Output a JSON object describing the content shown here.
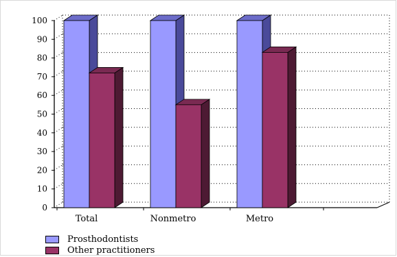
{
  "chart_data": {
    "type": "bar",
    "categories": [
      "Total",
      "Nonmetro",
      "Metro"
    ],
    "series": [
      {
        "name": "Prosthodontists",
        "values": [
          100,
          100,
          100
        ],
        "color": "#9999ff",
        "side_color": "#4a4a9a",
        "top_color": "#6c6cc9"
      },
      {
        "name": "Other practitioners",
        "values": [
          72,
          55,
          83
        ],
        "color": "#993366",
        "side_color": "#4d1a33",
        "top_color": "#7a2a52"
      }
    ],
    "ylim": [
      0,
      100
    ],
    "yticks": [
      "0",
      "10",
      "20",
      "30",
      "40",
      "50",
      "60",
      "70",
      "80",
      "90",
      "100"
    ],
    "grid": true,
    "legend_position": "bottom-left",
    "three_d": true
  }
}
